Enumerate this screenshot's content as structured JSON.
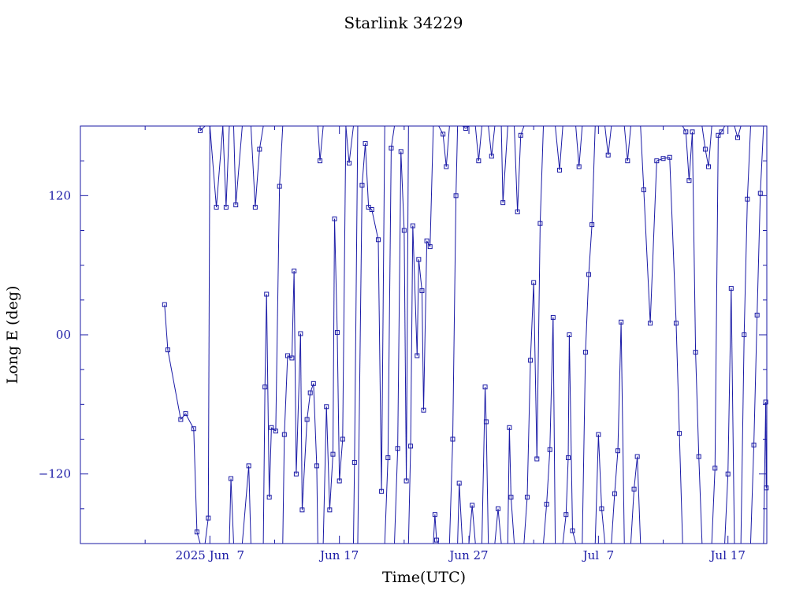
{
  "colors": {
    "ink": "#1a1aa6",
    "background": "#ffffff"
  },
  "chart_data": {
    "type": "line",
    "title": "Starlink 34229",
    "xlabel": "Time(UTC)",
    "ylabel": "Long E (deg)",
    "ylim": [
      -180,
      180
    ],
    "xlim": [
      "2025-05-28T00:00",
      "2025-07-20T00:00"
    ],
    "grid": false,
    "legend": "none",
    "x_tick_labels": [
      "2025 Jun  7",
      "Jun 17",
      "Jun 27",
      "Jul  7",
      "Jul 17"
    ],
    "x_ticks": [
      "2025-06-07",
      "2025-06-17",
      "2025-06-27",
      "2025-07-07",
      "2025-07-17"
    ],
    "x_minor_ticks": [
      "2025-06-02",
      "2025-06-12",
      "2025-06-22",
      "2025-07-02",
      "2025-07-12"
    ],
    "y_tick_labels": [
      "120",
      "00",
      "−120"
    ],
    "y_ticks": [
      120,
      0,
      -120
    ],
    "y_minor_step": 30,
    "marker": "open-square",
    "series": [
      {
        "name": "",
        "points": [
          [
            "2025-06-03T12:00",
            26
          ],
          [
            "2025-06-03T18:00",
            -13
          ],
          [
            "2025-06-04T18:00",
            -73
          ],
          [
            "2025-06-05T03:00",
            -68
          ],
          [
            "2025-06-05T18:00",
            -81
          ],
          [
            "2025-06-06T00:00",
            -170
          ],
          [
            "2025-06-06T06:00",
            -180
          ],
          [
            "2025-06-06T06:00",
            180
          ],
          [
            "2025-06-06T06:00",
            176
          ],
          [
            "2025-06-06T15:00",
            180
          ],
          [
            "2025-06-06T15:00",
            -180
          ],
          [
            "2025-06-06T21:00",
            -158
          ],
          [
            "2025-06-07T00:00",
            180
          ],
          [
            "2025-06-07T12:00",
            110
          ],
          [
            "2025-06-08T00:00",
            180
          ],
          [
            "2025-06-08T06:00",
            110
          ],
          [
            "2025-06-08T12:00",
            180
          ],
          [
            "2025-06-08T12:00",
            -180
          ],
          [
            "2025-06-08T15:00",
            -124
          ],
          [
            "2025-06-08T20:00",
            -180
          ],
          [
            "2025-06-08T20:00",
            180
          ],
          [
            "2025-06-09T00:00",
            112
          ],
          [
            "2025-06-09T12:00",
            180
          ],
          [
            "2025-06-09T12:00",
            -180
          ],
          [
            "2025-06-10T00:00",
            -113
          ],
          [
            "2025-06-10T04:00",
            -180
          ],
          [
            "2025-06-10T04:00",
            180
          ],
          [
            "2025-06-10T12:00",
            110
          ],
          [
            "2025-06-10T20:00",
            160
          ],
          [
            "2025-06-11T03:00",
            180
          ],
          [
            "2025-06-11T03:00",
            -180
          ],
          [
            "2025-06-11T06:00",
            -45
          ],
          [
            "2025-06-11T09:00",
            35
          ],
          [
            "2025-06-11T14:00",
            -140
          ],
          [
            "2025-06-11T18:00",
            -80
          ],
          [
            "2025-06-12T02:00",
            -83
          ],
          [
            "2025-06-12T09:00",
            128
          ],
          [
            "2025-06-12T15:00",
            180
          ],
          [
            "2025-06-12T15:00",
            -180
          ],
          [
            "2025-06-12T18:00",
            -86
          ],
          [
            "2025-06-13T00:00",
            -18
          ],
          [
            "2025-06-13T08:00",
            -20
          ],
          [
            "2025-06-13T12:00",
            55
          ],
          [
            "2025-06-13T16:00",
            -120
          ],
          [
            "2025-06-14T00:00",
            1
          ],
          [
            "2025-06-14T03:00",
            -151
          ],
          [
            "2025-06-14T12:00",
            -73
          ],
          [
            "2025-06-14T18:00",
            -50
          ],
          [
            "2025-06-15T00:00",
            -42
          ],
          [
            "2025-06-15T06:00",
            -113
          ],
          [
            "2025-06-15T08:00",
            -180
          ],
          [
            "2025-06-15T08:00",
            180
          ],
          [
            "2025-06-15T12:00",
            150
          ],
          [
            "2025-06-15T18:00",
            180
          ],
          [
            "2025-06-15T18:00",
            -180
          ],
          [
            "2025-06-16T00:00",
            -62
          ],
          [
            "2025-06-16T06:00",
            -151
          ],
          [
            "2025-06-16T12:00",
            -103
          ],
          [
            "2025-06-16T15:00",
            100
          ],
          [
            "2025-06-16T20:00",
            2
          ],
          [
            "2025-06-17T00:00",
            -126
          ],
          [
            "2025-06-17T06:00",
            -90
          ],
          [
            "2025-06-17T12:00",
            180
          ],
          [
            "2025-06-17T18:00",
            148
          ],
          [
            "2025-06-18T02:00",
            180
          ],
          [
            "2025-06-18T02:00",
            -180
          ],
          [
            "2025-06-18T04:00",
            -110
          ],
          [
            "2025-06-18T10:00",
            180
          ],
          [
            "2025-06-18T10:00",
            -180
          ],
          [
            "2025-06-18T18:00",
            129
          ],
          [
            "2025-06-19T00:00",
            165
          ],
          [
            "2025-06-19T06:00",
            110
          ],
          [
            "2025-06-19T12:00",
            108
          ],
          [
            "2025-06-20T00:00",
            82
          ],
          [
            "2025-06-20T06:00",
            -135
          ],
          [
            "2025-06-20T12:00",
            180
          ],
          [
            "2025-06-20T12:00",
            -180
          ],
          [
            "2025-06-20T18:00",
            -106
          ],
          [
            "2025-06-21T00:00",
            161
          ],
          [
            "2025-06-21T06:00",
            180
          ],
          [
            "2025-06-21T06:00",
            -180
          ],
          [
            "2025-06-21T12:00",
            -98
          ],
          [
            "2025-06-21T18:00",
            158
          ],
          [
            "2025-06-22T00:00",
            90
          ],
          [
            "2025-06-22T04:00",
            -126
          ],
          [
            "2025-06-22T08:00",
            180
          ],
          [
            "2025-06-22T08:00",
            -180
          ],
          [
            "2025-06-22T12:00",
            -96
          ],
          [
            "2025-06-22T16:00",
            94
          ],
          [
            "2025-06-23T00:00",
            -18
          ],
          [
            "2025-06-23T03:00",
            65
          ],
          [
            "2025-06-23T09:00",
            38
          ],
          [
            "2025-06-23T12:00",
            -65
          ],
          [
            "2025-06-23T18:00",
            81
          ],
          [
            "2025-06-24T00:00",
            76
          ],
          [
            "2025-06-24T06:00",
            180
          ],
          [
            "2025-06-24T06:00",
            -180
          ],
          [
            "2025-06-24T09:00",
            -155
          ],
          [
            "2025-06-24T12:00",
            -177
          ],
          [
            "2025-06-24T16:00",
            -180
          ],
          [
            "2025-06-24T16:00",
            180
          ],
          [
            "2025-06-25T00:00",
            173
          ],
          [
            "2025-06-25T06:00",
            145
          ],
          [
            "2025-06-25T12:00",
            180
          ],
          [
            "2025-06-25T12:00",
            -180
          ],
          [
            "2025-06-25T18:00",
            -90
          ],
          [
            "2025-06-26T00:00",
            120
          ],
          [
            "2025-06-26T03:00",
            180
          ],
          [
            "2025-06-26T03:00",
            -180
          ],
          [
            "2025-06-26T06:00",
            -128
          ],
          [
            "2025-06-26T12:00",
            -180
          ],
          [
            "2025-06-26T12:00",
            180
          ],
          [
            "2025-06-26T18:00",
            178
          ],
          [
            "2025-06-27T00:00",
            180
          ],
          [
            "2025-06-27T00:00",
            -180
          ],
          [
            "2025-06-27T06:00",
            -147
          ],
          [
            "2025-06-27T12:00",
            -180
          ],
          [
            "2025-06-27T12:00",
            180
          ],
          [
            "2025-06-27T18:00",
            150
          ],
          [
            "2025-06-28T00:00",
            180
          ],
          [
            "2025-06-28T00:00",
            -180
          ],
          [
            "2025-06-28T06:00",
            -45
          ],
          [
            "2025-06-28T08:00",
            -75
          ],
          [
            "2025-06-28T12:00",
            -180
          ],
          [
            "2025-06-28T12:00",
            180
          ],
          [
            "2025-06-28T18:00",
            154
          ],
          [
            "2025-06-29T00:00",
            180
          ],
          [
            "2025-06-29T00:00",
            -180
          ],
          [
            "2025-06-29T06:00",
            -150
          ],
          [
            "2025-06-29T12:00",
            -180
          ],
          [
            "2025-06-29T12:00",
            180
          ],
          [
            "2025-06-29T15:00",
            114
          ],
          [
            "2025-06-30T00:00",
            180
          ],
          [
            "2025-06-30T00:00",
            -180
          ],
          [
            "2025-06-30T03:00",
            -80
          ],
          [
            "2025-06-30T06:00",
            -140
          ],
          [
            "2025-06-30T12:00",
            -180
          ],
          [
            "2025-06-30T12:00",
            180
          ],
          [
            "2025-06-30T18:00",
            106
          ],
          [
            "2025-07-01T00:00",
            172
          ],
          [
            "2025-07-01T06:00",
            180
          ],
          [
            "2025-07-01T06:00",
            -180
          ],
          [
            "2025-07-01T12:00",
            -140
          ],
          [
            "2025-07-01T18:00",
            -22
          ],
          [
            "2025-07-02T00:00",
            45
          ],
          [
            "2025-07-02T06:00",
            -107
          ],
          [
            "2025-07-02T12:00",
            96
          ],
          [
            "2025-07-02T18:00",
            180
          ],
          [
            "2025-07-02T18:00",
            -180
          ],
          [
            "2025-07-03T00:00",
            -146
          ],
          [
            "2025-07-03T06:00",
            -99
          ],
          [
            "2025-07-03T12:00",
            15
          ],
          [
            "2025-07-03T16:00",
            -180
          ],
          [
            "2025-07-03T16:00",
            180
          ],
          [
            "2025-07-04T00:00",
            142
          ],
          [
            "2025-07-04T06:00",
            180
          ],
          [
            "2025-07-04T06:00",
            -180
          ],
          [
            "2025-07-04T12:00",
            -155
          ],
          [
            "2025-07-04T16:00",
            -106
          ],
          [
            "2025-07-04T18:00",
            0
          ],
          [
            "2025-07-05T00:00",
            -169
          ],
          [
            "2025-07-05T06:00",
            -180
          ],
          [
            "2025-07-05T06:00",
            180
          ],
          [
            "2025-07-05T12:00",
            145
          ],
          [
            "2025-07-05T18:00",
            180
          ],
          [
            "2025-07-05T18:00",
            -180
          ],
          [
            "2025-07-06T00:00",
            -15
          ],
          [
            "2025-07-06T06:00",
            52
          ],
          [
            "2025-07-06T12:00",
            95
          ],
          [
            "2025-07-06T18:00",
            180
          ],
          [
            "2025-07-06T18:00",
            -180
          ],
          [
            "2025-07-07T00:00",
            -86
          ],
          [
            "2025-07-07T06:00",
            -150
          ],
          [
            "2025-07-07T12:00",
            -180
          ],
          [
            "2025-07-07T12:00",
            180
          ],
          [
            "2025-07-07T18:00",
            155
          ],
          [
            "2025-07-08T00:00",
            180
          ],
          [
            "2025-07-08T00:00",
            -180
          ],
          [
            "2025-07-08T06:00",
            -137
          ],
          [
            "2025-07-08T12:00",
            -100
          ],
          [
            "2025-07-08T18:00",
            11
          ],
          [
            "2025-07-09T00:00",
            -180
          ],
          [
            "2025-07-09T00:00",
            180
          ],
          [
            "2025-07-09T06:00",
            150
          ],
          [
            "2025-07-09T12:00",
            180
          ],
          [
            "2025-07-09T12:00",
            -180
          ],
          [
            "2025-07-09T18:00",
            -133
          ],
          [
            "2025-07-10T00:00",
            -105
          ],
          [
            "2025-07-10T06:00",
            -180
          ],
          [
            "2025-07-10T06:00",
            180
          ],
          [
            "2025-07-10T12:00",
            125
          ],
          [
            "2025-07-11T00:00",
            10
          ],
          [
            "2025-07-11T12:00",
            150
          ],
          [
            "2025-07-12T00:00",
            152
          ],
          [
            "2025-07-12T12:00",
            153
          ],
          [
            "2025-07-13T00:00",
            10
          ],
          [
            "2025-07-13T06:00",
            -85
          ],
          [
            "2025-07-13T12:00",
            -180
          ],
          [
            "2025-07-13T12:00",
            180
          ],
          [
            "2025-07-13T18:00",
            175
          ],
          [
            "2025-07-14T00:00",
            133
          ],
          [
            "2025-07-14T06:00",
            175
          ],
          [
            "2025-07-14T12:00",
            -15
          ],
          [
            "2025-07-14T18:00",
            -105
          ],
          [
            "2025-07-15T00:00",
            -180
          ],
          [
            "2025-07-15T00:00",
            180
          ],
          [
            "2025-07-15T06:00",
            160
          ],
          [
            "2025-07-15T12:00",
            145
          ],
          [
            "2025-07-15T18:00",
            180
          ],
          [
            "2025-07-15T18:00",
            -180
          ],
          [
            "2025-07-16T00:00",
            -115
          ],
          [
            "2025-07-16T06:00",
            172
          ],
          [
            "2025-07-16T12:00",
            175
          ],
          [
            "2025-07-16T18:00",
            180
          ],
          [
            "2025-07-16T18:00",
            -180
          ],
          [
            "2025-07-17T00:00",
            -120
          ],
          [
            "2025-07-17T06:00",
            40
          ],
          [
            "2025-07-17T12:00",
            -180
          ],
          [
            "2025-07-17T12:00",
            180
          ],
          [
            "2025-07-17T18:00",
            170
          ],
          [
            "2025-07-18T00:00",
            180
          ],
          [
            "2025-07-18T00:00",
            -180
          ],
          [
            "2025-07-18T06:00",
            0
          ],
          [
            "2025-07-18T12:00",
            117
          ],
          [
            "2025-07-18T18:00",
            180
          ],
          [
            "2025-07-18T18:00",
            -180
          ],
          [
            "2025-07-19T00:00",
            -95
          ],
          [
            "2025-07-19T06:00",
            17
          ],
          [
            "2025-07-19T12:00",
            122
          ],
          [
            "2025-07-19T18:00",
            180
          ],
          [
            "2025-07-19T18:00",
            -180
          ],
          [
            "2025-07-19T22:00",
            -58
          ],
          [
            "2025-07-19T23:00",
            -132
          ]
        ]
      }
    ]
  }
}
